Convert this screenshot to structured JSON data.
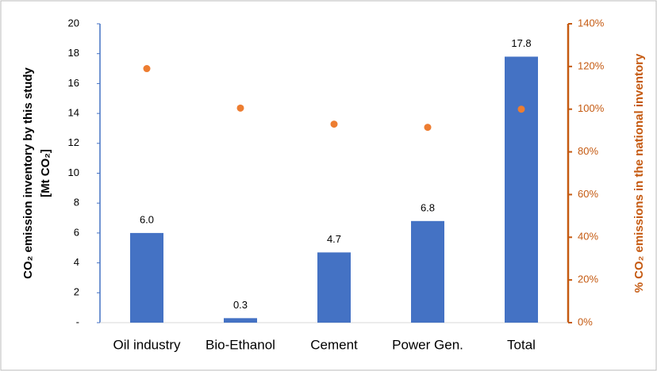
{
  "chart_data": {
    "type": "bar",
    "ylabel": [
      "CO₂ emission inventory by this study",
      "[Mt CO₂]"
    ],
    "y2label": "% CO₂ emissions in the national inventory",
    "categories": [
      "Oil industry",
      "Bio-Ethanol",
      "Cement",
      "Power Gen.",
      "Total"
    ],
    "series": [
      {
        "type": "bar",
        "color": "#4472c4",
        "values": [
          6.0,
          0.3,
          4.7,
          6.8,
          17.8
        ],
        "value_labels": [
          "6.0",
          "0.3",
          "4.7",
          "6.8",
          "17.8"
        ]
      },
      {
        "type": "scatter",
        "axis": "y2",
        "color": "#ed7d31",
        "values": [
          119,
          100.5,
          93,
          91.5,
          100
        ]
      }
    ],
    "ylim": [
      0,
      20
    ],
    "yticks": [
      {
        "value": 0,
        "label": "-"
      },
      2,
      4,
      6,
      8,
      10,
      12,
      14,
      16,
      18,
      20
    ],
    "y2lim": [
      0,
      140
    ],
    "y2ticks": [
      {
        "value": 0,
        "label": "0%"
      },
      {
        "value": 20,
        "label": "20%"
      },
      {
        "value": 40,
        "label": "40%"
      },
      {
        "value": 60,
        "label": "60%"
      },
      {
        "value": 80,
        "label": "80%"
      },
      {
        "value": 100,
        "label": "100%"
      },
      {
        "value": 120,
        "label": "120%"
      },
      {
        "value": 140,
        "label": "140%"
      }
    ],
    "y2color": "#c55a11"
  }
}
